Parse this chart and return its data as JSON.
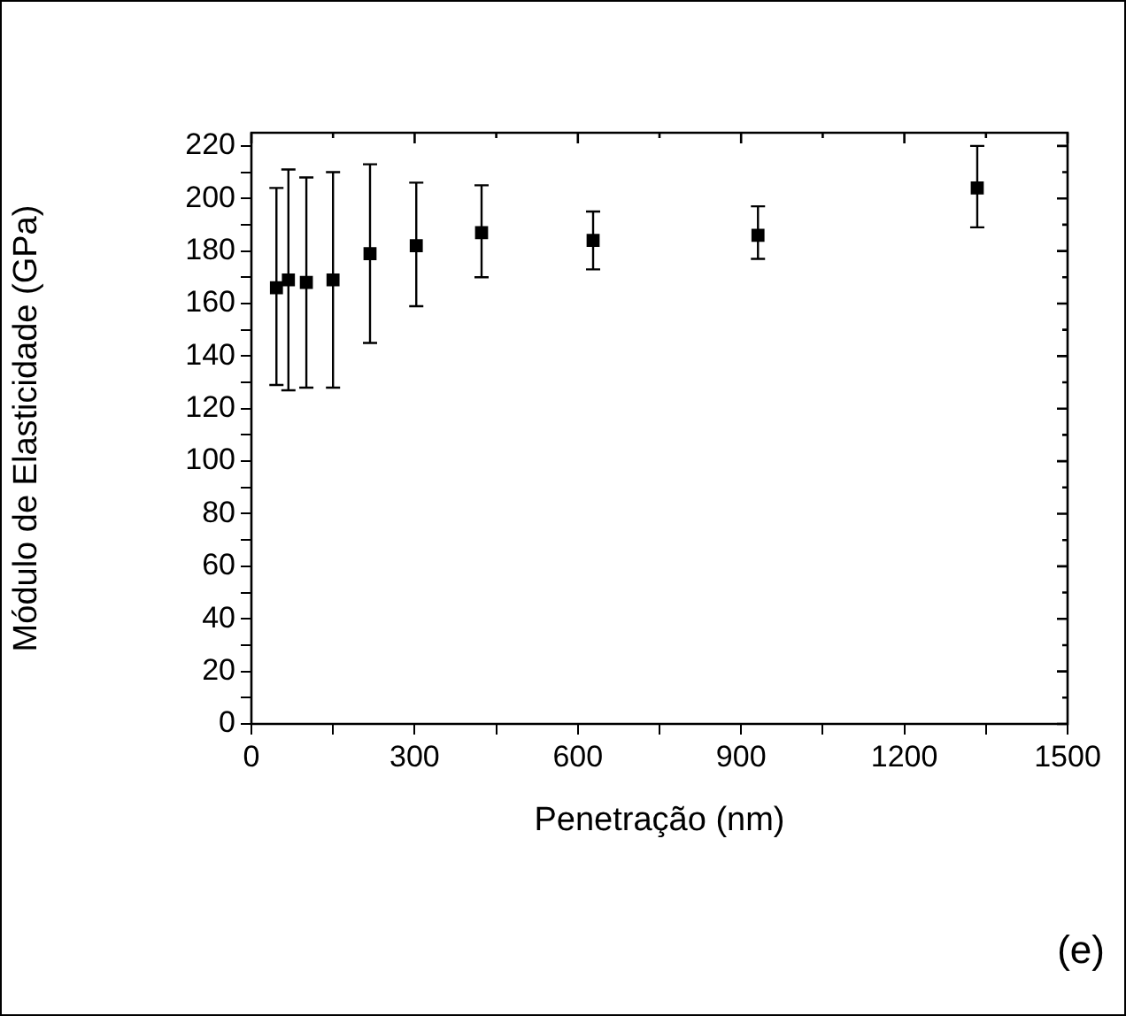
{
  "chart_data": {
    "type": "scatter",
    "xlabel": "Penetração (nm)",
    "ylabel": "Módulo de Elasticidade (GPa)",
    "x": [
      46,
      68,
      101,
      150,
      218,
      303,
      423,
      628,
      931,
      1334
    ],
    "series": [
      {
        "color": "#000000",
        "values": [
          166,
          169,
          168,
          169,
          179,
          182,
          187,
          184,
          186,
          204
        ],
        "errors": [
          [
            129,
            204
          ],
          [
            127,
            211
          ],
          [
            128,
            208
          ],
          [
            128,
            210
          ],
          [
            145,
            213
          ],
          [
            159,
            206
          ],
          [
            170,
            205
          ],
          [
            173,
            195
          ],
          [
            177,
            197
          ],
          [
            189,
            220
          ]
        ]
      }
    ],
    "xlim": [
      0,
      1500
    ],
    "ylim": [
      0,
      225
    ],
    "xticks": [
      0,
      {
        "value": 150,
        "label": null
      },
      300,
      {
        "value": 450,
        "label": null
      },
      600,
      {
        "value": 750,
        "label": null
      },
      900,
      {
        "value": 1050,
        "label": null
      },
      1200,
      {
        "value": 1350,
        "label": null
      },
      1500
    ],
    "yticks": [
      0,
      {
        "value": 10,
        "label": null
      },
      20,
      {
        "value": 30,
        "label": null
      },
      40,
      {
        "value": 50,
        "label": null
      },
      60,
      {
        "value": 70,
        "label": null
      },
      80,
      {
        "value": 90,
        "label": null
      },
      100,
      {
        "value": 110,
        "label": null
      },
      120,
      {
        "value": 130,
        "label": null
      },
      140,
      {
        "value": 150,
        "label": null
      },
      160,
      {
        "value": 170,
        "label": null
      },
      180,
      {
        "value": 190,
        "label": null
      },
      200,
      {
        "value": 210,
        "label": null
      },
      220
    ],
    "grid": false,
    "legend": false,
    "marker": "square",
    "annotations": [
      "(e)"
    ]
  }
}
